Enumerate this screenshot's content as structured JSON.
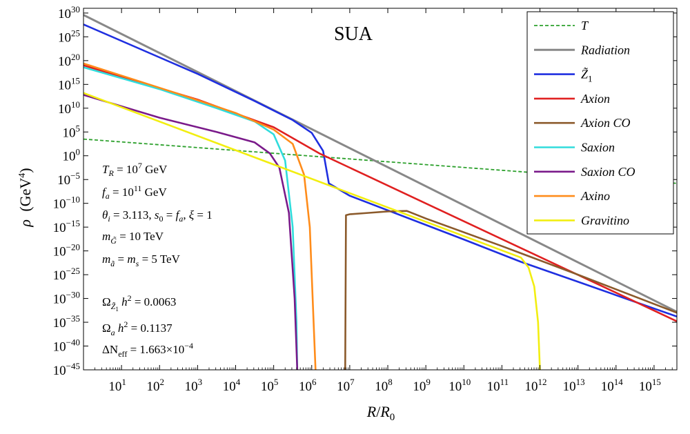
{
  "chart_data": {
    "type": "line",
    "title": "SUA",
    "xlabel": "R/R0",
    "ylabel": "ρ (GeV^4)",
    "x_scale": "log",
    "y_scale": "log",
    "xlim_log10": [
      0,
      15.6
    ],
    "ylim_log10": [
      -45,
      31
    ],
    "x_ticks": [
      {
        "base": "10",
        "exp": "1"
      },
      {
        "base": "10",
        "exp": "2"
      },
      {
        "base": "10",
        "exp": "3"
      },
      {
        "base": "10",
        "exp": "4"
      },
      {
        "base": "10",
        "exp": "5"
      },
      {
        "base": "10",
        "exp": "6"
      },
      {
        "base": "10",
        "exp": "7"
      },
      {
        "base": "10",
        "exp": "8"
      },
      {
        "base": "10",
        "exp": "9"
      },
      {
        "base": "10",
        "exp": "10"
      },
      {
        "base": "10",
        "exp": "11"
      },
      {
        "base": "10",
        "exp": "12"
      },
      {
        "base": "10",
        "exp": "13"
      },
      {
        "base": "10",
        "exp": "14"
      },
      {
        "base": "10",
        "exp": "15"
      }
    ],
    "y_ticks": [
      {
        "base": "10",
        "exp": "30"
      },
      {
        "base": "10",
        "exp": "25"
      },
      {
        "base": "10",
        "exp": "20"
      },
      {
        "base": "10",
        "exp": "15"
      },
      {
        "base": "10",
        "exp": "10"
      },
      {
        "base": "10",
        "exp": "5"
      },
      {
        "base": "10",
        "exp": "0"
      },
      {
        "base": "10",
        "exp": "−5"
      },
      {
        "base": "10",
        "exp": "−10"
      },
      {
        "base": "10",
        "exp": "−15"
      },
      {
        "base": "10",
        "exp": "−20"
      },
      {
        "base": "10",
        "exp": "−25"
      },
      {
        "base": "10",
        "exp": "−30"
      },
      {
        "base": "10",
        "exp": "−35"
      },
      {
        "base": "10",
        "exp": "−40"
      },
      {
        "base": "10",
        "exp": "−45"
      }
    ],
    "legend_position": "top-right",
    "series": [
      {
        "name": "T",
        "color": "#2ca02c",
        "dash": "5,3",
        "width": 1.8,
        "points_log10": [
          [
            0,
            3.5
          ],
          [
            15.6,
            -5.8
          ]
        ]
      },
      {
        "name": "Radiation",
        "color": "#888888",
        "width": 3,
        "points_log10": [
          [
            0,
            29.6
          ],
          [
            15.6,
            -32.8
          ]
        ]
      },
      {
        "name": "Z̃1",
        "color": "#1f2fe0",
        "width": 2.6,
        "points_log10": [
          [
            0,
            27.6
          ],
          [
            3,
            17.2
          ],
          [
            4.5,
            11.5
          ],
          [
            5.5,
            7.5
          ],
          [
            6.0,
            4.8
          ],
          [
            6.3,
            1.0
          ],
          [
            6.45,
            -5.8
          ],
          [
            7.0,
            -8.4
          ],
          [
            10.0,
            -17.6
          ],
          [
            11.5,
            -22.3
          ],
          [
            13.0,
            -26.5
          ],
          [
            15.6,
            -33.8
          ]
        ]
      },
      {
        "name": "Axion",
        "color": "#e02020",
        "width": 2.6,
        "points_log10": [
          [
            0,
            19.0
          ],
          [
            3,
            11.8
          ],
          [
            5,
            6.0
          ],
          [
            6.2,
            0.5
          ],
          [
            15.6,
            -34.8
          ]
        ]
      },
      {
        "name": "Axion CO",
        "color": "#8b5a2b",
        "width": 2.6,
        "points_log10": [
          [
            6.88,
            -45
          ],
          [
            6.9,
            -12.5
          ],
          [
            7.0,
            -12.3
          ],
          [
            7.5,
            -12.0
          ],
          [
            8.0,
            -11.7
          ],
          [
            8.5,
            -11.6
          ],
          [
            9.0,
            -13.2
          ],
          [
            11.0,
            -19.0
          ],
          [
            13.0,
            -25.0
          ],
          [
            15.6,
            -33.0
          ]
        ]
      },
      {
        "name": "Saxion",
        "color": "#30dcdc",
        "width": 2.6,
        "points_log10": [
          [
            0,
            18.6
          ],
          [
            2.0,
            14.0
          ],
          [
            3.5,
            10.0
          ],
          [
            4.5,
            7.2
          ],
          [
            5.0,
            4.5
          ],
          [
            5.3,
            -1.0
          ],
          [
            5.5,
            -15.0
          ],
          [
            5.6,
            -35.0
          ],
          [
            5.62,
            -45
          ]
        ]
      },
      {
        "name": "Saxion CO",
        "color": "#7a1a8a",
        "width": 2.6,
        "points_log10": [
          [
            0,
            12.8
          ],
          [
            2.0,
            8.0
          ],
          [
            3.5,
            5.0
          ],
          [
            4.5,
            2.8
          ],
          [
            4.9,
            0.5
          ],
          [
            5.15,
            -2.5
          ],
          [
            5.4,
            -12.0
          ],
          [
            5.55,
            -30.0
          ],
          [
            5.62,
            -45
          ]
        ]
      },
      {
        "name": "Axino",
        "color": "#ff8c1a",
        "width": 2.6,
        "points_log10": [
          [
            0,
            19.4
          ],
          [
            2.5,
            13.0
          ],
          [
            4.0,
            9.0
          ],
          [
            5.0,
            5.5
          ],
          [
            5.5,
            2.5
          ],
          [
            5.8,
            -4.0
          ],
          [
            5.95,
            -15.0
          ],
          [
            6.05,
            -35.0
          ],
          [
            6.1,
            -45
          ]
        ]
      },
      {
        "name": "Gravitino",
        "color": "#f2ee10",
        "width": 2.6,
        "points_log10": [
          [
            0,
            13.2
          ],
          [
            11.5,
            -21.4
          ],
          [
            11.7,
            -23.5
          ],
          [
            11.85,
            -27.5
          ],
          [
            11.95,
            -35.0
          ],
          [
            12.0,
            -45
          ]
        ]
      }
    ],
    "annotations": [
      {
        "key": "T_R",
        "value": "10^7 GeV"
      },
      {
        "key": "f_a",
        "value": "10^11 GeV"
      },
      {
        "key": "theta_line",
        "value": "θi = 3.113, s0 = fa, ξ = 1"
      },
      {
        "key": "m_gravitino",
        "value": "10 TeV"
      },
      {
        "key": "m_axino_saxion",
        "value": "5 TeV"
      },
      {
        "key": "omega_z1",
        "value": "0.0063"
      },
      {
        "key": "omega_a",
        "value": "0.1137"
      },
      {
        "key": "delta_neff",
        "value": "1.663×10^−4"
      }
    ],
    "text": {
      "tr_val_base": "10",
      "tr_val_exp": "7",
      "tr_unit": " GeV",
      "fa_val_base": "10",
      "fa_val_exp": "11",
      "fa_unit": " GeV",
      "theta_val": "3.113",
      "mg_val": "10 TeV",
      "ms_val": "5 TeV",
      "omz_val": "0.0063",
      "oma_val": "0.1137",
      "dn_mant": "1.663",
      "dn_exp": "−4",
      "ylabel_rho": "ρ",
      "ylabel_unit": "(GeV",
      "ylabel_pow": "4",
      "ylabel_close": ")",
      "xlabel_R": "R",
      "xlabel_slash": "/",
      "xlabel_R0": "R",
      "xlabel_sub": "0"
    }
  }
}
